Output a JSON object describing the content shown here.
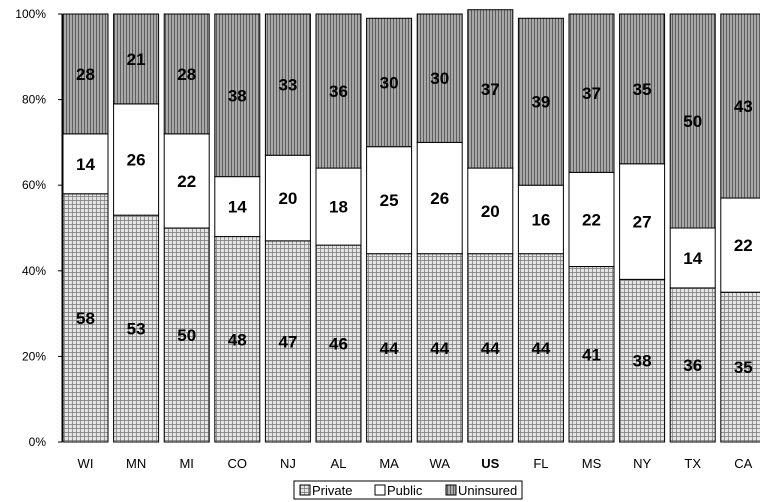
{
  "chart_data": {
    "type": "bar",
    "stacked": true,
    "percent": true,
    "categories": [
      "WI",
      "MN",
      "MI",
      "CO",
      "NJ",
      "AL",
      "MA",
      "WA",
      "US",
      "FL",
      "MS",
      "NY",
      "TX",
      "CA"
    ],
    "series": [
      {
        "name": "Private",
        "values": [
          58,
          53,
          50,
          48,
          47,
          46,
          44,
          44,
          44,
          44,
          41,
          38,
          36,
          35
        ]
      },
      {
        "name": "Public",
        "values": [
          14,
          26,
          22,
          14,
          20,
          18,
          25,
          26,
          20,
          16,
          22,
          27,
          14,
          22
        ]
      },
      {
        "name": "Uninsured",
        "values": [
          28,
          21,
          28,
          38,
          33,
          36,
          30,
          30,
          37,
          39,
          37,
          35,
          50,
          43
        ]
      }
    ],
    "ylim": [
      0,
      100
    ],
    "yticks": [
      "0%",
      "20%",
      "40%",
      "60%",
      "80%",
      "100%"
    ],
    "legend_position": "bottom",
    "highlighted_category": "US",
    "colors": {
      "private": "#d9d9d9",
      "public": "#ffffff",
      "uninsured": "#9a9a9a",
      "stroke": "#000000"
    }
  }
}
